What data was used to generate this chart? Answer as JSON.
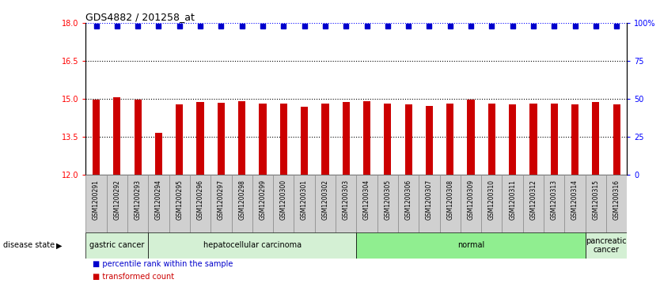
{
  "title": "GDS4882 / 201258_at",
  "samples": [
    "GSM1200291",
    "GSM1200292",
    "GSM1200293",
    "GSM1200294",
    "GSM1200295",
    "GSM1200296",
    "GSM1200297",
    "GSM1200298",
    "GSM1200299",
    "GSM1200300",
    "GSM1200301",
    "GSM1200302",
    "GSM1200303",
    "GSM1200304",
    "GSM1200305",
    "GSM1200306",
    "GSM1200307",
    "GSM1200308",
    "GSM1200309",
    "GSM1200310",
    "GSM1200311",
    "GSM1200312",
    "GSM1200313",
    "GSM1200314",
    "GSM1200315",
    "GSM1200316"
  ],
  "bar_values": [
    14.97,
    15.07,
    14.97,
    13.68,
    14.78,
    14.88,
    14.85,
    14.9,
    14.83,
    14.83,
    14.7,
    14.83,
    14.88,
    14.9,
    14.83,
    14.78,
    14.73,
    14.83,
    14.97,
    14.83,
    14.8,
    14.83,
    14.83,
    14.8,
    14.87,
    14.78
  ],
  "bar_color": "#cc0000",
  "percentile_color": "#0000cc",
  "ylim_left": [
    12,
    18
  ],
  "ylim_right": [
    0,
    100
  ],
  "yticks_left": [
    12,
    13.5,
    15,
    16.5,
    18
  ],
  "yticks_right": [
    0,
    25,
    50,
    75,
    100
  ],
  "gridlines": [
    13.5,
    15,
    16.5
  ],
  "disease_groups": [
    {
      "label": "gastric cancer",
      "start": 0,
      "end": 2,
      "color": "#d4f0d4"
    },
    {
      "label": "hepatocellular carcinoma",
      "start": 3,
      "end": 12,
      "color": "#d4f0d4"
    },
    {
      "label": "normal",
      "start": 13,
      "end": 23,
      "color": "#90ee90"
    },
    {
      "label": "pancreatic\ncancer",
      "start": 24,
      "end": 25,
      "color": "#d4f0d4"
    }
  ],
  "legend_items": [
    {
      "label": "transformed count",
      "color": "#cc0000"
    },
    {
      "label": "percentile rank within the sample",
      "color": "#0000cc"
    }
  ],
  "disease_state_label": "disease state",
  "sample_bg_color": "#d0d0d0",
  "sample_cell_edge_color": "#888888",
  "bar_width": 0.35,
  "pct_marker_size": 4,
  "title_fontsize": 9,
  "tick_fontsize": 7,
  "label_fontsize": 7,
  "sample_fontsize": 5.5
}
